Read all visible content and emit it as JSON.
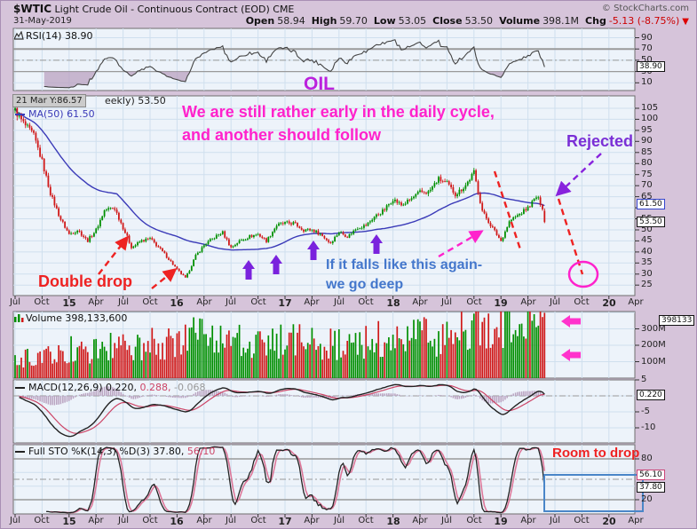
{
  "header": {
    "symbol": "$WTIC",
    "title": "Light Crude Oil - Continuous Contract (EOD)",
    "exchange": "CME",
    "date": "31-May-2019",
    "copyright": "© StockCharts.com",
    "quote": [
      {
        "label": "Open",
        "value": "58.94",
        "negative": false
      },
      {
        "label": "High",
        "value": "59.70",
        "negative": false
      },
      {
        "label": "Low",
        "value": "53.05",
        "negative": false
      },
      {
        "label": "Close",
        "value": "53.50",
        "negative": false
      },
      {
        "label": "Volume",
        "value": "398.1M",
        "negative": false
      },
      {
        "label": "Chg",
        "value": "-5.13 (-8.75%)",
        "negative": true
      }
    ],
    "chg_arrow": "▼"
  },
  "panels": {
    "rsi": {
      "label": "RSI(14) 38.90",
      "tag": "38.90",
      "axis": [
        "90",
        "70",
        "50",
        "30",
        "10"
      ]
    },
    "price": {
      "tooltip": "21 Mar Y:86.57",
      "partial_title": "eekly) 53.50",
      "ma_label": "MA(50) 61.50",
      "tag_ma": "61.50",
      "tag_close": "53.50",
      "axis": [
        "105",
        "100",
        "95",
        "90",
        "85",
        "80",
        "75",
        "70",
        "65",
        "60",
        "55",
        "50",
        "45",
        "40",
        "35",
        "30",
        "25"
      ]
    },
    "volume": {
      "label": "Volume 398,133,600",
      "tag": "398133",
      "axis": [
        "300M",
        "200M",
        "100M"
      ]
    },
    "macd": {
      "label_main": "MACD(12,26,9) 0.220,",
      "label_signal": "0.288,",
      "label_hist": "-0.068",
      "tag": "0.220",
      "axis": [
        "5",
        "-5",
        "-10"
      ]
    },
    "sto": {
      "label_main": "Full STO %K(14,3) %D(3) 37.80,",
      "label_d": "56.10",
      "tag_d": "56.10",
      "tag_k": "37.80",
      "axis": [
        "80",
        "20"
      ]
    }
  },
  "annotations": {
    "oil": "OIL",
    "cycle": "We are still rather early in the daily cycle,\nand another should follow",
    "rejected": "Rejected",
    "double_drop": "Double drop",
    "falls": "If it falls like this again-\nwe go deep",
    "room": "Room to drop"
  },
  "xaxis": {
    "labels": [
      "Jul",
      "Oct",
      "15",
      "Apr",
      "Jul",
      "Oct",
      "16",
      "Apr",
      "Jul",
      "Oct",
      "17",
      "Apr",
      "Jul",
      "Oct",
      "18",
      "Apr",
      "Jul",
      "Oct",
      "19",
      "Apr",
      "Jul",
      "Oct",
      "20",
      "Apr"
    ]
  },
  "colors": {
    "up": "#008f00",
    "down": "#d01818",
    "ma": "#3a3ab8",
    "grid": "#cfdfee",
    "panel_bg": "#edf3fa",
    "panel_border": "#6e6e6e",
    "rsi_line": "#444444",
    "macd_line": "#222222",
    "macd_signal": "#cc4466",
    "hist": "#b9a2c0",
    "sto_k": "#222222",
    "sto_d": "#dd7799",
    "ann_red": "#ee2222",
    "ann_purple": "#8822dd",
    "ann_magenta": "#ff22cc",
    "ann_blue": "#4a86c8"
  },
  "chart_data": {
    "type": "candlestick",
    "symbol": "$WTIC",
    "timeframe": "weekly",
    "title": "Light Crude Oil - Continuous Contract (EOD) CME",
    "x_ticks": [
      "Jul",
      "Oct",
      "15",
      "Apr",
      "Jul",
      "Oct",
      "16",
      "Apr",
      "Jul",
      "Oct",
      "17",
      "Apr",
      "Jul",
      "Oct",
      "18",
      "Apr",
      "Jul",
      "Oct",
      "19",
      "Apr",
      "Jul",
      "Oct",
      "20",
      "Apr"
    ],
    "x_range_years": [
      2014.5,
      2020.45
    ],
    "price_ylim": [
      20,
      110
    ],
    "volume_ylim_millions": [
      0,
      405
    ],
    "rsi_lines": [
      70,
      50,
      30
    ],
    "sto_lines": [
      80,
      50,
      20
    ],
    "last_bar": {
      "open": 58.94,
      "high": 59.7,
      "low": 53.05,
      "close": 53.5,
      "volume": 398133600,
      "chg": -5.13,
      "chg_pct": -8.75
    },
    "indicators_last": {
      "rsi14": 38.9,
      "ma50": 61.5,
      "macd": 0.22,
      "macd_signal": 0.288,
      "macd_hist": -0.068,
      "sto_k": 37.8,
      "sto_d": 56.1
    },
    "monthly_close": [
      [
        2014.5,
        104
      ],
      [
        2014.58,
        98
      ],
      [
        2014.67,
        93
      ],
      [
        2014.75,
        81
      ],
      [
        2014.83,
        66
      ],
      [
        2014.92,
        55
      ],
      [
        2015.0,
        48
      ],
      [
        2015.08,
        50
      ],
      [
        2015.17,
        45
      ],
      [
        2015.25,
        50
      ],
      [
        2015.33,
        59
      ],
      [
        2015.42,
        60
      ],
      [
        2015.5,
        51
      ],
      [
        2015.58,
        42
      ],
      [
        2015.67,
        45
      ],
      [
        2015.75,
        46
      ],
      [
        2015.83,
        42
      ],
      [
        2015.92,
        37
      ],
      [
        2016.0,
        32
      ],
      [
        2016.08,
        28
      ],
      [
        2016.17,
        38
      ],
      [
        2016.25,
        43
      ],
      [
        2016.33,
        46
      ],
      [
        2016.42,
        49
      ],
      [
        2016.5,
        42
      ],
      [
        2016.58,
        45
      ],
      [
        2016.67,
        47
      ],
      [
        2016.75,
        48
      ],
      [
        2016.83,
        45
      ],
      [
        2016.92,
        52
      ],
      [
        2017.0,
        53
      ],
      [
        2017.08,
        53
      ],
      [
        2017.17,
        50
      ],
      [
        2017.25,
        50
      ],
      [
        2017.33,
        48
      ],
      [
        2017.42,
        44
      ],
      [
        2017.5,
        49
      ],
      [
        2017.58,
        47
      ],
      [
        2017.67,
        51
      ],
      [
        2017.75,
        52
      ],
      [
        2017.83,
        56
      ],
      [
        2017.92,
        59
      ],
      [
        2018.0,
        64
      ],
      [
        2018.08,
        61
      ],
      [
        2018.17,
        64
      ],
      [
        2018.25,
        67
      ],
      [
        2018.33,
        67
      ],
      [
        2018.42,
        73
      ],
      [
        2018.5,
        71
      ],
      [
        2018.58,
        66
      ],
      [
        2018.67,
        70
      ],
      [
        2018.75,
        76
      ],
      [
        2018.83,
        58
      ],
      [
        2018.92,
        51
      ],
      [
        2019.0,
        45
      ],
      [
        2019.08,
        54
      ],
      [
        2019.17,
        57
      ],
      [
        2019.25,
        60
      ],
      [
        2019.33,
        65
      ],
      [
        2019.38,
        61
      ],
      [
        2019.42,
        53.5
      ]
    ],
    "volume_anchors_millions": [
      [
        2014.5,
        110
      ],
      [
        2015.0,
        170
      ],
      [
        2015.5,
        190
      ],
      [
        2016.0,
        230
      ],
      [
        2016.25,
        260
      ],
      [
        2016.5,
        215
      ],
      [
        2017.0,
        225
      ],
      [
        2017.5,
        205
      ],
      [
        2018.0,
        250
      ],
      [
        2018.5,
        255
      ],
      [
        2018.83,
        310
      ],
      [
        2019.0,
        345
      ],
      [
        2019.17,
        320
      ],
      [
        2019.33,
        340
      ],
      [
        2019.42,
        398
      ]
    ]
  }
}
